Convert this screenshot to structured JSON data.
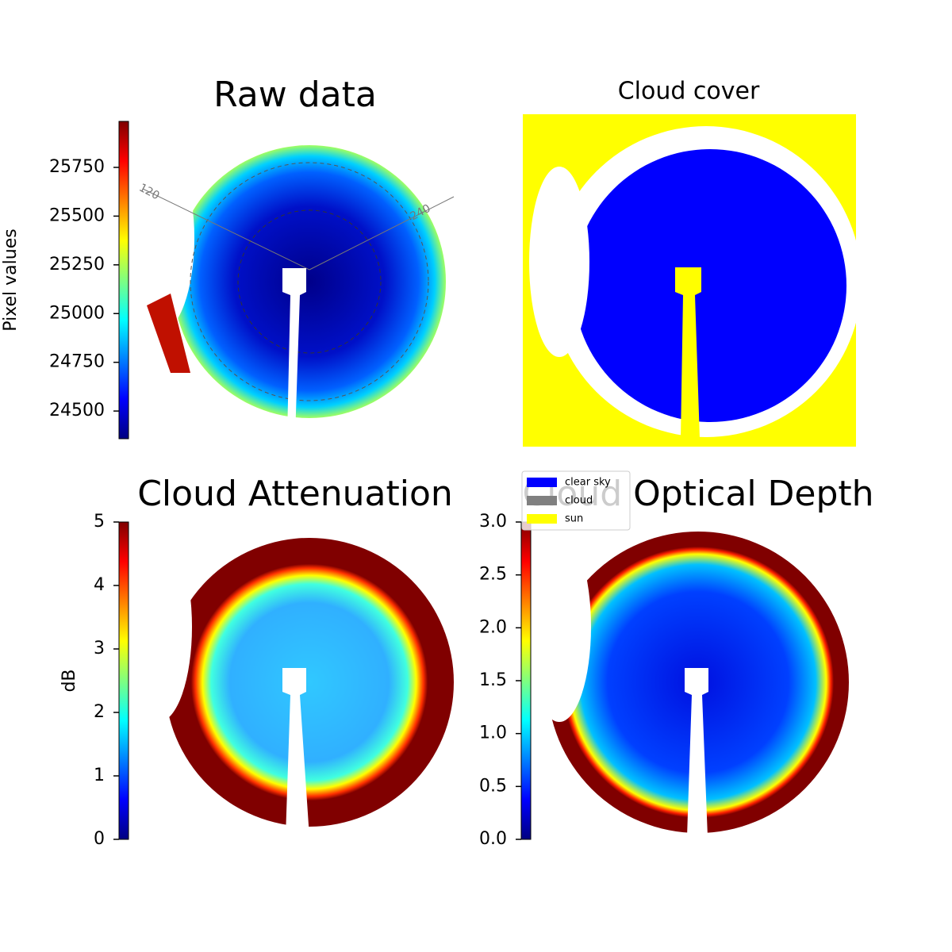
{
  "chart_data": [
    {
      "type": "image",
      "title": "Raw data",
      "colorbar_label": "Pixel values",
      "clim": [
        24358,
        25986
      ],
      "yticks": [
        24500,
        24750,
        25000,
        25250,
        25500,
        25750
      ],
      "colormap": "jet",
      "annotations": [
        "120",
        "240"
      ]
    },
    {
      "type": "categorical-image",
      "title": "Cloud cover",
      "legend": [
        {
          "name": "clear sky",
          "color": "#0000ff"
        },
        {
          "name": "cloud",
          "color": "#808080"
        },
        {
          "name": "sun",
          "color": "#ffff00"
        }
      ]
    },
    {
      "type": "image",
      "title": "Cloud Attenuation",
      "colorbar_label": "dB",
      "clim": [
        0,
        5
      ],
      "yticks": [
        0,
        1,
        2,
        3,
        4,
        5
      ],
      "colormap": "jet"
    },
    {
      "type": "image",
      "title": "Cloud Optical Depth",
      "clim": [
        0,
        3
      ],
      "yticks": [
        {
          "value": 0,
          "label": "0.0"
        },
        {
          "value": 0.5,
          "label": "0.5"
        },
        {
          "value": 1,
          "label": "1.0"
        },
        {
          "value": 1.5,
          "label": "1.5"
        },
        {
          "value": 2,
          "label": "2.0"
        },
        {
          "value": 2.5,
          "label": "2.5"
        },
        {
          "value": 3,
          "label": "3.0"
        }
      ],
      "colormap": "jet"
    }
  ]
}
